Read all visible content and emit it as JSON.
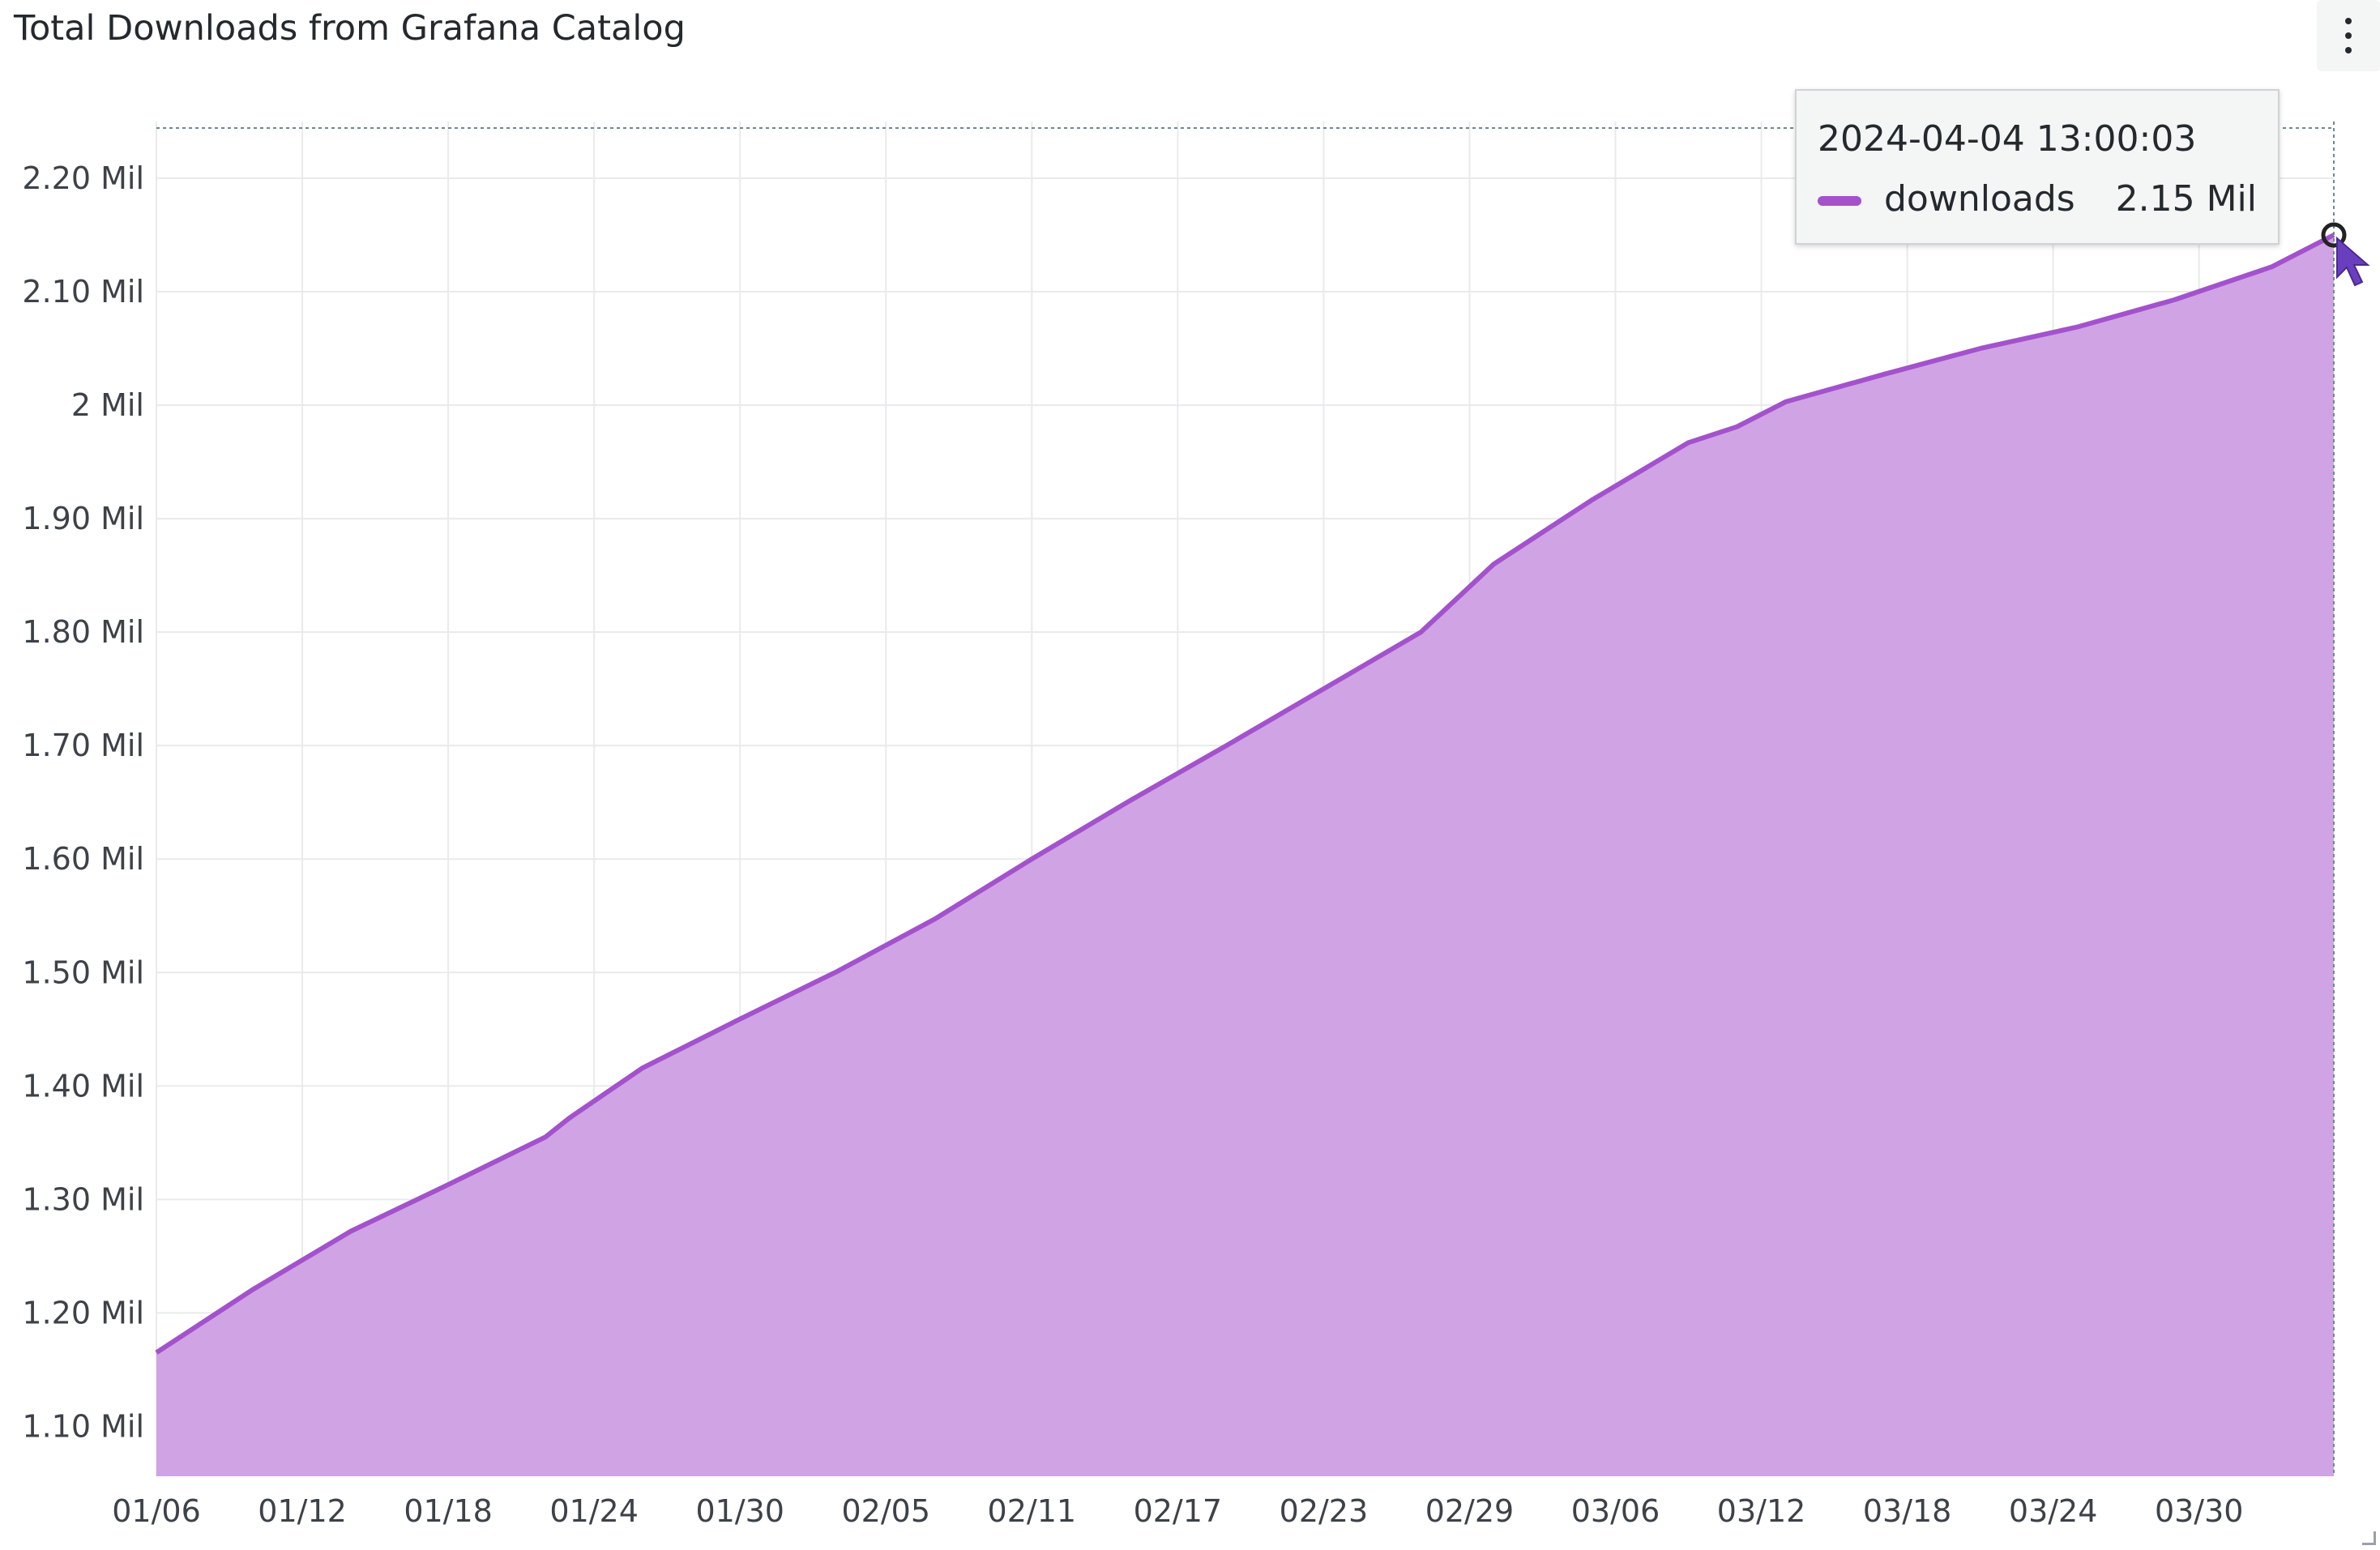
{
  "panel": {
    "title": "Total Downloads from Grafana Catalog",
    "menu_icon": "kebab-menu-icon"
  },
  "colors": {
    "series": "#a352cc",
    "fill": "#d0a4e4",
    "grid": "#e9eaeb",
    "axis_text": "#3d4248"
  },
  "tooltip": {
    "time": "2024-04-04 13:00:03",
    "series": "downloads",
    "value": "2.15 Mil"
  },
  "chart_data": {
    "type": "area",
    "title": "Total Downloads from Grafana Catalog",
    "xlabel": "",
    "ylabel": "",
    "x_ticks": [
      "01/06",
      "01/12",
      "01/18",
      "01/24",
      "01/30",
      "02/05",
      "02/11",
      "02/17",
      "02/23",
      "02/29",
      "03/06",
      "03/12",
      "03/18",
      "03/24",
      "03/30"
    ],
    "y_ticks": [
      "1.10 Mil",
      "1.20 Mil",
      "1.30 Mil",
      "1.40 Mil",
      "1.50 Mil",
      "1.60 Mil",
      "1.70 Mil",
      "1.80 Mil",
      "1.90 Mil",
      "2 Mil",
      "2.10 Mil",
      "2.20 Mil"
    ],
    "y_tick_values": [
      1.1,
      1.2,
      1.3,
      1.4,
      1.5,
      1.6,
      1.7,
      1.8,
      1.9,
      2.0,
      2.1,
      2.2
    ],
    "x_range": [
      "2024-01-06",
      "2024-04-04"
    ],
    "ylim": [
      1.056,
      2.25
    ],
    "y_unit": "Mil",
    "grid": true,
    "legend": "none",
    "series": [
      {
        "name": "downloads",
        "x": [
          "2024-01-06",
          "2024-01-10",
          "2024-01-14",
          "2024-01-18",
          "2024-01-22",
          "2024-01-23",
          "2024-01-26",
          "2024-01-30",
          "2024-02-03",
          "2024-02-07",
          "2024-02-11",
          "2024-02-15",
          "2024-02-19",
          "2024-02-23",
          "2024-02-27",
          "2024-03-01",
          "2024-03-05",
          "2024-03-09",
          "2024-03-11",
          "2024-03-13",
          "2024-03-17",
          "2024-03-21",
          "2024-03-25",
          "2024-03-29",
          "2024-04-02",
          "2024-04-04"
        ],
        "values": [
          1.165,
          1.221,
          1.272,
          1.313,
          1.355,
          1.372,
          1.416,
          1.459,
          1.501,
          1.547,
          1.6,
          1.651,
          1.7,
          1.75,
          1.8,
          1.86,
          1.916,
          1.967,
          1.981,
          2.003,
          2.027,
          2.05,
          2.069,
          2.093,
          2.122,
          2.15
        ]
      }
    ]
  }
}
